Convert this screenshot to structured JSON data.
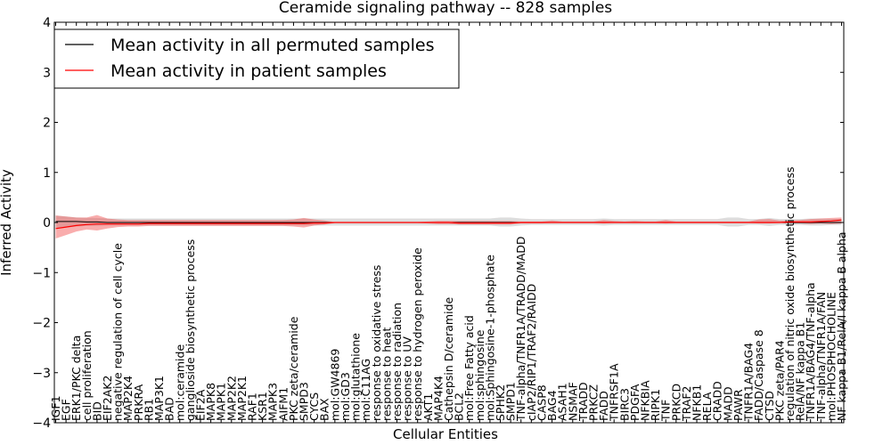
{
  "chart_data": {
    "type": "line",
    "title": "Ceramide signaling pathway -- 828 samples",
    "xlabel": "Cellular Entities",
    "ylabel": "Inferred Activity",
    "ylim": [
      -4,
      4
    ],
    "yticks": [
      -4,
      -3,
      -2,
      -1,
      0,
      1,
      2,
      3,
      4
    ],
    "yticklabels": [
      "−4",
      "−3",
      "−2",
      "−1",
      "0",
      "1",
      "2",
      "3",
      "4"
    ],
    "legend_position": "top-left",
    "categories": [
      "IGF1",
      "EGF",
      "ERK1/PKC delta",
      "cell proliferation",
      "BID",
      "EIF2AK2",
      "negative regulation of cell cycle",
      "MAP2K4",
      "PRKRA",
      "RB1",
      "MAP3K1",
      "BAD",
      "mol:ceramide",
      "ganglioside biosynthetic process",
      "EIF2A",
      "MAPK8",
      "MAPK1",
      "MAP2K2",
      "MAP2K1",
      "RAF1",
      "KSR1",
      "MAPK3",
      "AIFM1",
      "PKC zeta/ceramide",
      "SMPD3",
      "CYCS",
      "BAX",
      "mol:GW4869",
      "mol:GD3",
      "mol:glutathione",
      "mol:C11AG",
      "response to oxidative stress",
      "response to heat",
      "response to radiation",
      "response to UV",
      "response to hydrogen peroxide",
      "AKT1",
      "MAP4K4",
      "Cathepsin D/ceramide",
      "BCL2",
      "mol:Free Fatty acid",
      "mol:sphingosine",
      "mol:Sphingosine-1-phosphate",
      "SPHK2",
      "SMPD1",
      "TNF-alpha/TNFR1A/TRADD/MADD",
      "cIAP2/RIP1/TRAF2/RAIDD",
      "CASP8",
      "BAG4",
      "ASAH1",
      "NSMAF",
      "TRADD",
      "PRKCZ",
      "FADD",
      "TNFRSF1A",
      "BIRC3",
      "PDGFA",
      "NFKBIA",
      "RIPK1",
      "TNF",
      "PRKCD",
      "TRAF2",
      "NFKB1",
      "RELA",
      "CRADD",
      "MADD",
      "PAWR",
      "TNFR1A/BAG4",
      "FADD/Caspase 8",
      "CTSD",
      "PKC zeta/PAR4",
      "regulation of nitric oxide biosynthetic process",
      "RelA/NF kappa B1",
      "TNFR1A/BAG4/TNF-alpha",
      "TNF-alpha/TNFR1A/FAN",
      "mol:PHOSPHOCHOLINE",
      "NF kappa B1/RelA/I kappa B alpha"
    ],
    "series": [
      {
        "name": "Mean activity in all permuted samples",
        "color": "#000000",
        "values": [
          0.02,
          0.02,
          0.02,
          0.01,
          0.01,
          0.0,
          0.0,
          0.0,
          0.0,
          0.0,
          0.0,
          0.0,
          0.0,
          0.0,
          0.0,
          0.0,
          0.0,
          0.0,
          0.0,
          0.0,
          0.0,
          0.0,
          0.0,
          0.0,
          0.0,
          0.0,
          0.0,
          0.0,
          0.0,
          0.0,
          0.0,
          0.0,
          0.0,
          0.0,
          0.0,
          0.0,
          0.0,
          0.0,
          0.0,
          0.0,
          0.0,
          0.0,
          0.0,
          0.0,
          0.0,
          0.0,
          0.0,
          0.0,
          0.0,
          0.0,
          0.0,
          0.0,
          0.0,
          0.0,
          0.0,
          0.0,
          0.0,
          0.0,
          0.0,
          0.0,
          0.0,
          0.0,
          0.0,
          0.0,
          0.0,
          0.0,
          0.0,
          0.0,
          0.0,
          0.0,
          0.0,
          0.0,
          0.0,
          0.0,
          0.0,
          0.0,
          0.0
        ],
        "band_low": [
          -0.12,
          -0.1,
          -0.08,
          -0.07,
          -0.07,
          -0.06,
          -0.06,
          -0.06,
          -0.06,
          -0.06,
          -0.06,
          -0.06,
          -0.06,
          -0.06,
          -0.06,
          -0.06,
          -0.06,
          -0.06,
          -0.06,
          -0.06,
          -0.06,
          -0.06,
          -0.06,
          -0.06,
          -0.06,
          -0.06,
          -0.06,
          -0.06,
          -0.06,
          -0.06,
          -0.06,
          -0.06,
          -0.06,
          -0.06,
          -0.06,
          -0.06,
          -0.06,
          -0.06,
          -0.06,
          -0.06,
          -0.06,
          -0.06,
          -0.06,
          -0.08,
          -0.08,
          -0.06,
          -0.05,
          -0.05,
          -0.05,
          -0.05,
          -0.05,
          -0.05,
          -0.05,
          -0.06,
          -0.05,
          -0.05,
          -0.05,
          -0.05,
          -0.05,
          -0.05,
          -0.05,
          -0.05,
          -0.05,
          -0.05,
          -0.05,
          -0.08,
          -0.08,
          -0.05,
          -0.05,
          -0.07,
          -0.05,
          -0.05,
          -0.05,
          -0.06,
          -0.06,
          -0.05,
          -0.05
        ],
        "band_high": [
          0.14,
          0.12,
          0.1,
          0.09,
          0.09,
          0.08,
          0.08,
          0.08,
          0.08,
          0.08,
          0.08,
          0.08,
          0.08,
          0.08,
          0.08,
          0.08,
          0.08,
          0.08,
          0.08,
          0.08,
          0.08,
          0.08,
          0.08,
          0.08,
          0.08,
          0.08,
          0.08,
          0.08,
          0.08,
          0.08,
          0.08,
          0.08,
          0.08,
          0.08,
          0.08,
          0.08,
          0.08,
          0.08,
          0.08,
          0.08,
          0.08,
          0.08,
          0.08,
          0.1,
          0.1,
          0.08,
          0.07,
          0.07,
          0.07,
          0.07,
          0.07,
          0.07,
          0.07,
          0.08,
          0.07,
          0.07,
          0.07,
          0.07,
          0.07,
          0.07,
          0.07,
          0.07,
          0.07,
          0.07,
          0.07,
          0.1,
          0.1,
          0.07,
          0.07,
          0.09,
          0.07,
          0.07,
          0.07,
          0.08,
          0.08,
          0.07,
          0.07
        ]
      },
      {
        "name": "Mean activity in patient samples",
        "color": "#ff0000",
        "values": [
          -0.12,
          -0.09,
          -0.06,
          -0.04,
          -0.03,
          -0.03,
          -0.03,
          -0.03,
          -0.03,
          -0.02,
          -0.02,
          -0.02,
          -0.02,
          -0.02,
          -0.02,
          -0.02,
          -0.02,
          -0.02,
          -0.02,
          -0.02,
          -0.02,
          -0.02,
          -0.02,
          -0.02,
          -0.02,
          -0.01,
          -0.01,
          0.0,
          0.0,
          0.0,
          0.0,
          0.0,
          0.0,
          0.0,
          0.0,
          0.0,
          0.0,
          0.0,
          0.0,
          -0.01,
          -0.01,
          -0.01,
          -0.01,
          -0.01,
          -0.01,
          0.0,
          0.0,
          0.0,
          0.0,
          0.0,
          0.0,
          0.0,
          0.0,
          0.0,
          0.0,
          0.0,
          0.0,
          0.0,
          0.0,
          0.0,
          0.0,
          0.0,
          0.0,
          0.0,
          0.0,
          0.0,
          0.0,
          0.0,
          0.0,
          0.0,
          0.0,
          0.01,
          0.01,
          0.01,
          0.02,
          0.03,
          0.05
        ],
        "band_low": [
          -0.32,
          -0.25,
          -0.18,
          -0.14,
          -0.16,
          -0.12,
          -0.09,
          -0.08,
          -0.08,
          -0.07,
          -0.07,
          -0.07,
          -0.07,
          -0.07,
          -0.07,
          -0.07,
          -0.07,
          -0.07,
          -0.07,
          -0.07,
          -0.07,
          -0.07,
          -0.07,
          -0.08,
          -0.1,
          -0.06,
          -0.04,
          -0.01,
          -0.01,
          -0.01,
          -0.01,
          -0.01,
          -0.01,
          -0.01,
          -0.01,
          -0.01,
          -0.02,
          -0.03,
          -0.03,
          -0.04,
          -0.04,
          -0.04,
          -0.04,
          -0.04,
          -0.04,
          -0.02,
          -0.02,
          -0.02,
          -0.01,
          -0.01,
          -0.01,
          -0.01,
          -0.01,
          -0.02,
          -0.01,
          -0.01,
          -0.01,
          -0.01,
          -0.01,
          -0.02,
          -0.01,
          -0.01,
          -0.01,
          -0.01,
          -0.01,
          -0.01,
          -0.01,
          -0.01,
          -0.02,
          -0.02,
          -0.01,
          -0.02,
          -0.02,
          -0.03,
          -0.02,
          -0.03,
          -0.02
        ],
        "band_high": [
          0.14,
          0.12,
          0.1,
          0.1,
          0.15,
          0.08,
          0.06,
          0.05,
          0.05,
          0.05,
          0.05,
          0.05,
          0.05,
          0.05,
          0.05,
          0.05,
          0.05,
          0.05,
          0.05,
          0.05,
          0.05,
          0.05,
          0.05,
          0.06,
          0.09,
          0.06,
          0.04,
          0.01,
          0.01,
          0.01,
          0.01,
          0.01,
          0.01,
          0.01,
          0.01,
          0.01,
          0.02,
          0.03,
          0.03,
          0.03,
          0.03,
          0.03,
          0.03,
          0.03,
          0.03,
          0.02,
          0.02,
          0.02,
          0.04,
          0.02,
          0.02,
          0.02,
          0.02,
          0.05,
          0.03,
          0.02,
          0.03,
          0.02,
          0.02,
          0.05,
          0.02,
          0.02,
          0.02,
          0.02,
          0.02,
          0.02,
          0.02,
          0.02,
          0.06,
          0.07,
          0.04,
          0.04,
          0.05,
          0.07,
          0.08,
          0.09,
          0.1
        ]
      }
    ]
  }
}
